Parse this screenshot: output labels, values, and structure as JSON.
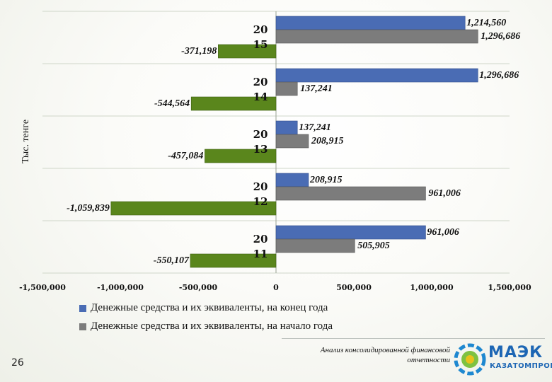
{
  "chart_data": {
    "type": "bar",
    "orientation": "horizontal",
    "ylabel": "Тыс. тенге",
    "categories": [
      "2015",
      "2014",
      "2013",
      "2012",
      "2011"
    ],
    "category_labels": [
      [
        "20",
        "15"
      ],
      [
        "20",
        "14"
      ],
      [
        "20",
        "13"
      ],
      [
        "20",
        "12"
      ],
      [
        "20",
        "11"
      ]
    ],
    "series": [
      {
        "name": "Денежные средства и их эквиваленты, на конец года",
        "color": "#4a6cb4",
        "values": [
          1214560,
          1296686,
          137241,
          208915,
          961006
        ]
      },
      {
        "name": "Денежные средства и их эквиваленты, на начало года",
        "color": "#7c7c7c",
        "values": [
          1296686,
          137241,
          208915,
          961006,
          505905
        ]
      },
      {
        "name": "",
        "color": "#5a861c",
        "values": [
          -371198,
          -544564,
          -457084,
          -1059839,
          -550107
        ]
      }
    ],
    "data_labels": [
      [
        "1,214,560",
        "1,296,686",
        "-371,198"
      ],
      [
        "1,296,686",
        "137,241",
        "-544,564"
      ],
      [
        "137,241",
        "208,915",
        "-457,084"
      ],
      [
        "208,915",
        "961,006",
        "-1,059,839"
      ],
      [
        "961,006",
        "505,905",
        "-550,107"
      ]
    ],
    "xlim": [
      -1500000,
      1500000
    ],
    "xticks": [
      -1500000,
      -1000000,
      -500000,
      0,
      500000,
      1000000,
      1500000
    ],
    "xtick_labels": [
      "-1,500,000",
      "-1,000,000",
      "-500,000",
      "0",
      "500,000",
      "1,000,000",
      "1,500,000"
    ],
    "grid": "horizontal",
    "legend_position": "bottom"
  },
  "legend": {
    "item1": "Денежные средства и их эквиваленты, на конец года",
    "item2": "Денежные средства и их эквиваленты, на начало года"
  },
  "footer": {
    "page_number": "26",
    "caption_line1": "Анализ консолидированной финансовой",
    "caption_line2": "отчетности",
    "logo_text": "МАЭК",
    "logo_subtext": "КАЗАТОМПРОМ"
  }
}
